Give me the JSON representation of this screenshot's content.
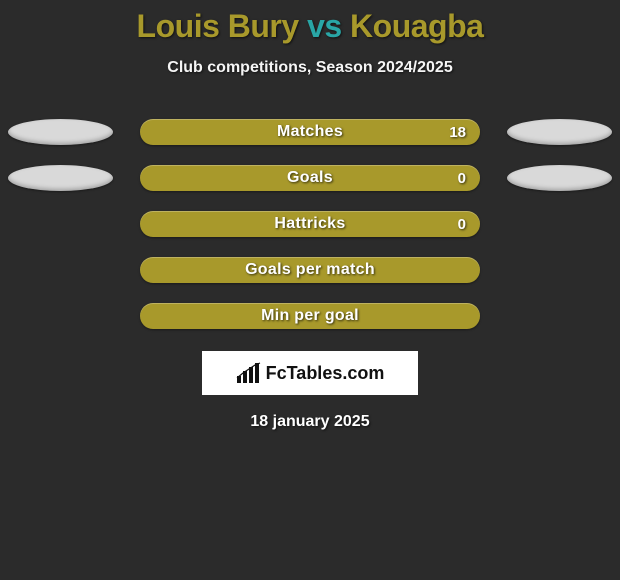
{
  "title": {
    "parts": [
      {
        "text": "Louis Bury",
        "color": "#a8992b"
      },
      {
        "text": " vs ",
        "color": "#29a6a6"
      },
      {
        "text": "Kouagba",
        "color": "#a8992b"
      }
    ],
    "fontsize": 32
  },
  "subtitle": "Club competitions, Season 2024/2025",
  "background_color": "#2b2b2b",
  "ellipse_color": "#d9d9d9",
  "stats": [
    {
      "label": "Matches",
      "value_right": "18",
      "bar_color": "#a8992b",
      "show_ellipses": true,
      "show_value": true
    },
    {
      "label": "Goals",
      "value_right": "0",
      "bar_color": "#a8992b",
      "show_ellipses": true,
      "show_value": true
    },
    {
      "label": "Hattricks",
      "value_right": "0",
      "bar_color": "#a8992b",
      "show_ellipses": false,
      "show_value": true
    },
    {
      "label": "Goals per match",
      "value_right": "",
      "bar_color": "#a8992b",
      "show_ellipses": false,
      "show_value": false
    },
    {
      "label": "Min per goal",
      "value_right": "",
      "bar_color": "#a8992b",
      "show_ellipses": false,
      "show_value": false
    }
  ],
  "logo": {
    "text": "FcTables.com"
  },
  "date": "18 january 2025"
}
